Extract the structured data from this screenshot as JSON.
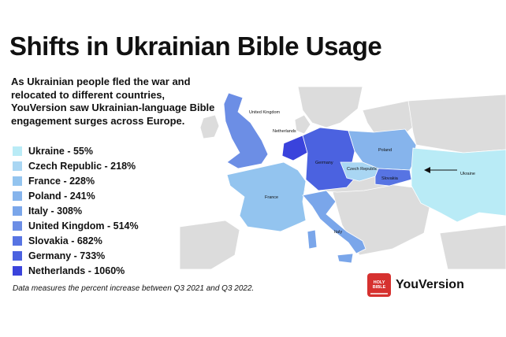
{
  "title": "Shifts in Ukrainian Bible Usage",
  "intro": "As Ukrainian people fled the war and relocated to different countries, YouVersion saw Ukrainian-language Bible engagement surges across Europe.",
  "legend": [
    {
      "label": "Ukraine - 55%",
      "color": "#b9ebf6"
    },
    {
      "label": "Czech Republic - 218%",
      "color": "#a9d6f3"
    },
    {
      "label": "France - 228%",
      "color": "#93c4ef"
    },
    {
      "label": "Poland - 241%",
      "color": "#86b4ec"
    },
    {
      "label": "Italy - 308%",
      "color": "#7aa6ea"
    },
    {
      "label": "United Kingdom - 514%",
      "color": "#6c8ee5"
    },
    {
      "label": "Slovakia - 682%",
      "color": "#5774e3"
    },
    {
      "label": "Germany - 733%",
      "color": "#4b62e0"
    },
    {
      "label": "Netherlands - 1060%",
      "color": "#3a43dc"
    }
  ],
  "map_labels": {
    "uk": "United Kingdom",
    "netherlands": "Netherlands",
    "germany": "Germany",
    "poland": "Poland",
    "czech": "Czech Republic",
    "slovakia": "Slovakia",
    "ukraine": "Ukraine",
    "france": "France",
    "italy": "Italy"
  },
  "colors": {
    "land": "#dcdcdc",
    "uk": "#6c8ee5",
    "netherlands": "#3a43dc",
    "germany": "#4b62e0",
    "poland": "#86b4ec",
    "czech": "#a9d6f3",
    "slovakia": "#5774e3",
    "ukraine": "#b9ebf6",
    "france": "#93c4ef",
    "italy": "#7aa6ea"
  },
  "footnote": "Data measures the percent increase between Q3 2021 and Q3 2022.",
  "brand": {
    "name": "YouVersion",
    "icon_text": "HOLY BIBLE"
  }
}
